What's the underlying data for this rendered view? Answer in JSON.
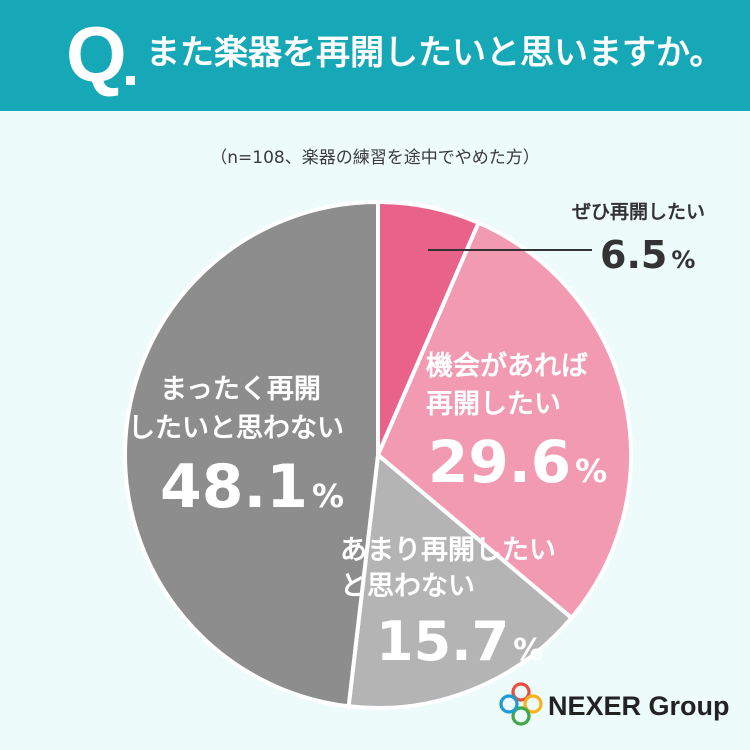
{
  "header": {
    "q_letter": "Q",
    "question": "また楽器を再開したいと思いますか。"
  },
  "note": "（n=108、楽器の練習を途中でやめた方）",
  "chart_data": {
    "type": "pie",
    "start_angle_deg": 0,
    "direction": "clockwise",
    "slices": [
      {
        "label_lines": [
          "ぜひ再開したい"
        ],
        "value": 6.5,
        "value_text": "6.5",
        "unit": "%",
        "color": "#e8628a"
      },
      {
        "label_lines": [
          "機会があれば",
          "再開したい"
        ],
        "value": 29.6,
        "value_text": "29.6",
        "unit": "%",
        "color": "#f29ab2"
      },
      {
        "label_lines": [
          "あまり再開したい",
          "と思わない"
        ],
        "value": 15.7,
        "value_text": "15.7",
        "unit": "%",
        "color": "#b4b4b4"
      },
      {
        "label_lines": [
          "まったく再開",
          "したいと思わない"
        ],
        "value": 48.1,
        "value_text": "48.1",
        "unit": "%",
        "color": "#8d8d8d"
      }
    ]
  },
  "logo": {
    "text": "NEXER Group",
    "colors": [
      "#e94e3c",
      "#f6b21b",
      "#3fa848",
      "#1a9bd7"
    ]
  }
}
